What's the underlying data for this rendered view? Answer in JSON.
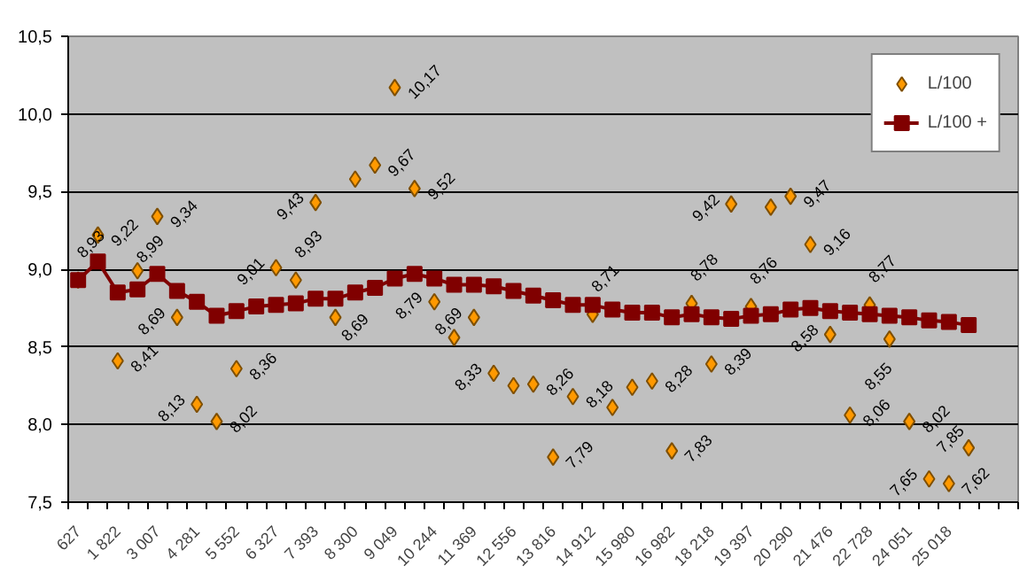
{
  "chart_data": {
    "type": "line",
    "categories": [
      "627",
      null,
      "1 822",
      null,
      "3 007",
      null,
      "4 281",
      null,
      "5 552",
      null,
      "6 327",
      null,
      "7 393",
      null,
      "8 300",
      null,
      "9 049",
      null,
      "10 244",
      null,
      "11 369",
      null,
      "12 556",
      null,
      "13 816",
      null,
      "14 912",
      null,
      "15 980",
      null,
      "16 982",
      null,
      "18 218",
      null,
      "19 397",
      null,
      "20 290",
      null,
      "21 476",
      null,
      "22 728",
      null,
      "24 051",
      null,
      "25 018",
      null,
      null,
      null
    ],
    "series": [
      {
        "name": "L/100",
        "type": "scatter",
        "marker": "diamond",
        "color": "#ff9900",
        "values": [
          8.93,
          9.22,
          8.41,
          8.99,
          9.34,
          8.69,
          8.13,
          8.02,
          8.36,
          null,
          9.01,
          8.93,
          9.43,
          8.69,
          9.58,
          9.67,
          10.17,
          9.52,
          8.79,
          8.56,
          8.69,
          8.33,
          8.25,
          8.26,
          7.79,
          8.18,
          8.71,
          8.11,
          8.24,
          8.28,
          7.83,
          8.78,
          8.39,
          9.42,
          8.76,
          9.4,
          9.47,
          9.16,
          8.58,
          8.06,
          8.77,
          8.55,
          8.02,
          7.65,
          7.62,
          7.85,
          null,
          null
        ],
        "value_labels": [
          "8,93",
          "9,22",
          "8,41",
          "8,99",
          "9,34",
          "8,69",
          "8,13",
          "8,02",
          "8,36",
          null,
          "9,01",
          "8,93",
          "9,43",
          "8,69",
          null,
          "9,67",
          "10,17",
          "9,52",
          "8,79",
          null,
          "8,69",
          "8,33",
          null,
          "8,26",
          "7,79",
          "8,18",
          "8,71",
          null,
          null,
          "8,28",
          "7,83",
          "8,78",
          "8,39",
          "9,42",
          "8,76",
          null,
          "9,47",
          "9,16",
          "8,58",
          "8,06",
          "8,77",
          "8,55",
          "8,02",
          "7,65",
          "7,62",
          "7,85",
          null,
          null
        ]
      },
      {
        "name": "L/100 +",
        "marker": "square",
        "color": "#800000",
        "values": [
          8.93,
          9.05,
          8.85,
          8.87,
          8.97,
          8.86,
          8.79,
          8.7,
          8.73,
          8.76,
          8.77,
          8.78,
          8.81,
          8.81,
          8.85,
          8.88,
          8.94,
          8.97,
          8.94,
          8.9,
          8.9,
          8.89,
          8.86,
          8.83,
          8.8,
          8.77,
          8.77,
          8.74,
          8.72,
          8.72,
          8.69,
          8.71,
          8.69,
          8.68,
          8.7,
          8.71,
          8.74,
          8.75,
          8.73,
          8.72,
          8.71,
          8.7,
          8.69,
          8.67,
          8.66,
          8.64,
          null,
          null
        ]
      }
    ],
    "ylim": [
      7.5,
      10.5
    ],
    "yticks": [
      {
        "value": 7.5,
        "label": "7,5"
      },
      {
        "value": 8.0,
        "label": "8,0"
      },
      {
        "value": 8.5,
        "label": "8,5"
      },
      {
        "value": 9.0,
        "label": "9,0"
      },
      {
        "value": 9.5,
        "label": "9,5"
      },
      {
        "value": 10.0,
        "label": "10,0"
      },
      {
        "value": 10.5,
        "label": "10,5"
      }
    ],
    "grid": "y",
    "legend": "top right"
  }
}
